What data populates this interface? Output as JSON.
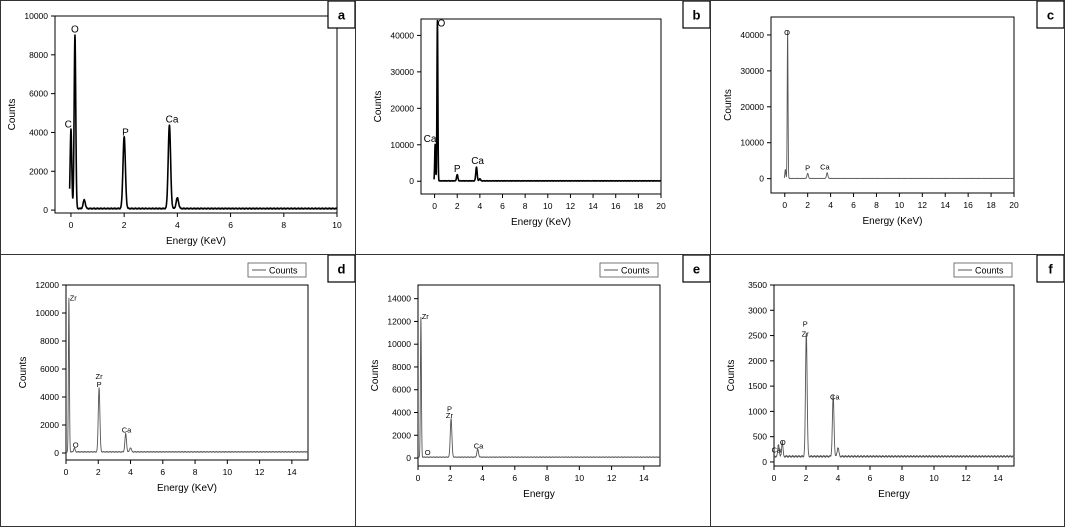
{
  "chart_data": [
    {
      "panel": "a",
      "type": "line",
      "style": "thick",
      "xlabel": "Energy (KeV)",
      "ylabel": "Counts",
      "xlim": [
        -0.6,
        10
      ],
      "ylim": [
        -150,
        10000
      ],
      "xticks": [
        0,
        2,
        4,
        6,
        8,
        10
      ],
      "yticks": [
        0,
        2000,
        4000,
        6000,
        8000,
        10000
      ],
      "baseline": 80,
      "noise": 25,
      "peaks": [
        {
          "x": 0.0,
          "y": 4100,
          "w": 0.03
        },
        {
          "x": 0.15,
          "y": 8950,
          "w": 0.03
        },
        {
          "x": 0.5,
          "y": 450,
          "w": 0.04
        },
        {
          "x": 2.0,
          "y": 3700,
          "w": 0.045
        },
        {
          "x": 3.7,
          "y": 4300,
          "w": 0.045
        },
        {
          "x": 4.0,
          "y": 550,
          "w": 0.045
        }
      ],
      "labels": [
        {
          "text": "C",
          "x": -0.1,
          "y": 4250
        },
        {
          "text": "O",
          "x": 0.15,
          "y": 9150
        },
        {
          "text": "P",
          "x": 2.05,
          "y": 3850
        },
        {
          "text": "Ca",
          "x": 3.8,
          "y": 4500
        }
      ],
      "legend": ""
    },
    {
      "panel": "b",
      "type": "line",
      "style": "thick",
      "xlabel": "Energy (KeV)",
      "ylabel": "Counts",
      "xlim": [
        -1.2,
        20
      ],
      "ylim": [
        -3500,
        44500
      ],
      "xticks": [
        0,
        2,
        4,
        6,
        8,
        10,
        12,
        14,
        16,
        18,
        20
      ],
      "yticks": [
        0,
        10000,
        20000,
        30000,
        40000
      ],
      "baseline": 100,
      "noise": 60,
      "peaks": [
        {
          "x": 0.05,
          "y": 10000,
          "w": 0.04
        },
        {
          "x": 0.25,
          "y": 44000,
          "w": 0.04
        },
        {
          "x": 2.0,
          "y": 1700,
          "w": 0.06
        },
        {
          "x": 3.7,
          "y": 3800,
          "w": 0.06
        },
        {
          "x": 4.0,
          "y": 600,
          "w": 0.06
        }
      ],
      "labels": [
        {
          "text": "O",
          "x": 0.6,
          "y": 42500
        },
        {
          "text": "Ca",
          "x": -0.4,
          "y": 10700
        },
        {
          "text": "P",
          "x": 2.0,
          "y": 2500
        },
        {
          "text": "Ca",
          "x": 3.8,
          "y": 4700
        }
      ],
      "legend": ""
    },
    {
      "panel": "c",
      "type": "line",
      "style": "thin",
      "xlabel": "Energy (KeV)",
      "ylabel": "Counts",
      "xlim": [
        -1.2,
        20
      ],
      "ylim": [
        -4000,
        45000
      ],
      "xticks": [
        0,
        2,
        4,
        6,
        8,
        10,
        12,
        14,
        16,
        18,
        20
      ],
      "yticks": [
        0,
        10000,
        20000,
        30000,
        40000
      ],
      "baseline": 60,
      "noise": 40,
      "peaks": [
        {
          "x": 0.05,
          "y": 2500,
          "w": 0.04
        },
        {
          "x": 0.25,
          "y": 41000,
          "w": 0.035
        },
        {
          "x": 2.0,
          "y": 1400,
          "w": 0.06
        },
        {
          "x": 3.7,
          "y": 1600,
          "w": 0.06
        }
      ],
      "labels": [
        {
          "text": "O",
          "x": 0.2,
          "y": 40000
        },
        {
          "text": "P",
          "x": 2.0,
          "y": 2300
        },
        {
          "text": "Ca",
          "x": 3.5,
          "y": 2600
        }
      ],
      "legend": ""
    },
    {
      "panel": "d",
      "type": "line",
      "style": "thin",
      "xlabel": "Energy (KeV)",
      "ylabel": "Counts",
      "xlim": [
        0,
        15
      ],
      "ylim": [
        -500,
        12000
      ],
      "xticks": [
        0,
        2,
        4,
        6,
        8,
        10,
        12,
        14
      ],
      "yticks": [
        0,
        2000,
        4000,
        6000,
        8000,
        10000,
        12000
      ],
      "baseline": 80,
      "noise": 35,
      "peaks": [
        {
          "x": 0.18,
          "y": 11000,
          "w": 0.03
        },
        {
          "x": 0.52,
          "y": 300,
          "w": 0.04
        },
        {
          "x": 2.05,
          "y": 4600,
          "w": 0.05
        },
        {
          "x": 3.7,
          "y": 1300,
          "w": 0.05
        },
        {
          "x": 4.0,
          "y": 300,
          "w": 0.05
        }
      ],
      "labels": [
        {
          "text": "Zr",
          "x": 0.45,
          "y": 10900
        },
        {
          "text": "Zr",
          "x": 2.05,
          "y": 5300
        },
        {
          "text": "P",
          "x": 2.05,
          "y": 4700
        },
        {
          "text": "O",
          "x": 0.6,
          "y": 400
        },
        {
          "text": "Ca",
          "x": 3.75,
          "y": 1450
        }
      ],
      "legend": "Counts"
    },
    {
      "panel": "e",
      "type": "line",
      "style": "thin",
      "xlabel": "Energy",
      "ylabel": "Counts",
      "xlim": [
        0,
        15
      ],
      "ylim": [
        -700,
        15200
      ],
      "xticks": [
        0,
        2,
        4,
        6,
        8,
        10,
        12,
        14
      ],
      "yticks": [
        0,
        2000,
        4000,
        6000,
        8000,
        10000,
        12000,
        14000
      ],
      "baseline": 80,
      "noise": 35,
      "peaks": [
        {
          "x": 0.18,
          "y": 12300,
          "w": 0.03
        },
        {
          "x": 2.05,
          "y": 3400,
          "w": 0.05
        },
        {
          "x": 3.7,
          "y": 700,
          "w": 0.05
        }
      ],
      "labels": [
        {
          "text": "Zr",
          "x": 0.45,
          "y": 12200
        },
        {
          "text": "P",
          "x": 1.95,
          "y": 4100
        },
        {
          "text": "Zr",
          "x": 1.95,
          "y": 3500
        },
        {
          "text": "O",
          "x": 0.6,
          "y": 250
        },
        {
          "text": "Ca",
          "x": 3.75,
          "y": 850
        }
      ],
      "legend": "Counts"
    },
    {
      "panel": "f",
      "type": "line",
      "style": "thin",
      "xlabel": "Energy",
      "ylabel": "Counts",
      "xlim": [
        0,
        15
      ],
      "ylim": [
        -80,
        3500
      ],
      "xticks": [
        0,
        2,
        4,
        6,
        8,
        10,
        12,
        14
      ],
      "yticks": [
        0,
        500,
        1000,
        1500,
        2000,
        2500,
        3000,
        3500
      ],
      "baseline": 110,
      "noise": 20,
      "peaks": [
        {
          "x": 0.28,
          "y": 250,
          "w": 0.04
        },
        {
          "x": 0.52,
          "y": 300,
          "w": 0.04
        },
        {
          "x": 2.02,
          "y": 2450,
          "w": 0.05
        },
        {
          "x": 3.7,
          "y": 1200,
          "w": 0.05
        },
        {
          "x": 4.0,
          "y": 180,
          "w": 0.05
        }
      ],
      "labels": [
        {
          "text": "P",
          "x": 1.95,
          "y": 2680
        },
        {
          "text": "Zr",
          "x": 1.95,
          "y": 2480
        },
        {
          "text": "O",
          "x": 0.55,
          "y": 340
        },
        {
          "text": "Ca",
          "x": 0.15,
          "y": 190
        },
        {
          "text": "Ca",
          "x": 3.8,
          "y": 1240
        }
      ],
      "legend": "Counts"
    }
  ]
}
